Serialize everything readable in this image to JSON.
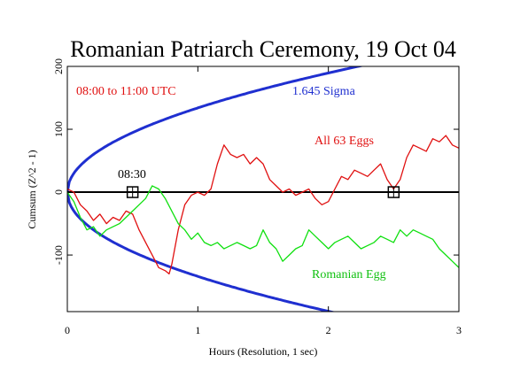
{
  "chart_data": {
    "type": "line",
    "title": "Romanian Patriarch Ceremony, 19 Oct 04",
    "xlabel": "Hours (Resolution, 1 sec)",
    "ylabel": "Cumsum (Z^2 - 1)",
    "xlim": [
      0,
      3
    ],
    "ylim": [
      -190,
      200
    ],
    "x_ticks": [
      0,
      1,
      2,
      3
    ],
    "y_ticks": [
      -100,
      0,
      100,
      200
    ],
    "x_tick_labels": [
      "0",
      "1",
      "2",
      "3"
    ],
    "y_tick_labels": [
      "-100",
      "0",
      "100",
      "200"
    ],
    "grid": false,
    "zero_line": 0,
    "envelope": {
      "label": "1.645 Sigma",
      "color": "#1f2fd0",
      "coefficient": 134
    },
    "annotations": {
      "time_range": "08:00 to 11:00 UTC",
      "marker_label": "08:30",
      "marker_x": [
        0.5,
        2.5
      ]
    },
    "series": [
      {
        "name": "All 63 Eggs",
        "color": "#e01010",
        "x": [
          0,
          0.05,
          0.1,
          0.15,
          0.2,
          0.25,
          0.3,
          0.35,
          0.4,
          0.45,
          0.5,
          0.55,
          0.6,
          0.65,
          0.7,
          0.75,
          0.78,
          0.8,
          0.85,
          0.9,
          0.95,
          1.0,
          1.05,
          1.1,
          1.15,
          1.2,
          1.25,
          1.3,
          1.35,
          1.4,
          1.45,
          1.5,
          1.55,
          1.6,
          1.65,
          1.7,
          1.75,
          1.8,
          1.85,
          1.9,
          1.95,
          2.0,
          2.05,
          2.1,
          2.15,
          2.2,
          2.25,
          2.3,
          2.35,
          2.4,
          2.45,
          2.5,
          2.55,
          2.6,
          2.65,
          2.7,
          2.75,
          2.8,
          2.85,
          2.9,
          2.95,
          3.0
        ],
        "y": [
          5,
          0,
          -20,
          -30,
          -45,
          -35,
          -50,
          -40,
          -45,
          -30,
          -35,
          -60,
          -80,
          -100,
          -120,
          -125,
          -130,
          -115,
          -60,
          -20,
          -5,
          0,
          -5,
          5,
          45,
          75,
          60,
          55,
          60,
          45,
          55,
          45,
          20,
          10,
          0,
          5,
          -5,
          0,
          5,
          -10,
          -20,
          -15,
          5,
          25,
          20,
          35,
          30,
          25,
          35,
          45,
          20,
          5,
          20,
          55,
          75,
          70,
          65,
          85,
          80,
          90,
          75,
          70
        ]
      },
      {
        "name": "Romanian Egg",
        "color": "#10e010",
        "x": [
          0,
          0.05,
          0.1,
          0.15,
          0.2,
          0.25,
          0.3,
          0.35,
          0.4,
          0.45,
          0.5,
          0.55,
          0.6,
          0.65,
          0.7,
          0.75,
          0.8,
          0.85,
          0.9,
          0.95,
          1.0,
          1.05,
          1.1,
          1.15,
          1.2,
          1.25,
          1.3,
          1.35,
          1.4,
          1.45,
          1.5,
          1.55,
          1.6,
          1.65,
          1.7,
          1.75,
          1.8,
          1.85,
          1.9,
          1.95,
          2.0,
          2.05,
          2.1,
          2.15,
          2.2,
          2.25,
          2.3,
          2.35,
          2.4,
          2.45,
          2.5,
          2.55,
          2.6,
          2.65,
          2.7,
          2.75,
          2.8,
          2.85,
          2.9,
          2.95,
          3.0
        ],
        "y": [
          0,
          -15,
          -40,
          -60,
          -55,
          -70,
          -60,
          -55,
          -50,
          -40,
          -30,
          -20,
          -10,
          10,
          5,
          -10,
          -30,
          -50,
          -60,
          -75,
          -65,
          -80,
          -85,
          -80,
          -90,
          -85,
          -80,
          -85,
          -90,
          -85,
          -60,
          -80,
          -90,
          -110,
          -100,
          -90,
          -85,
          -60,
          -70,
          -80,
          -90,
          -80,
          -75,
          -70,
          -80,
          -90,
          -85,
          -80,
          -70,
          -75,
          -80,
          -60,
          -70,
          -60,
          -65,
          -70,
          -75,
          -90,
          -100,
          -110,
          -120
        ]
      }
    ]
  }
}
